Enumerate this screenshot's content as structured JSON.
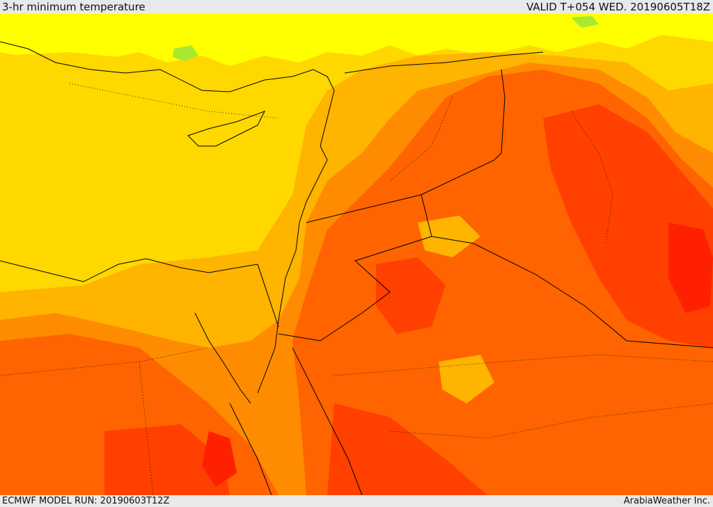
{
  "header": {
    "title": "3-hr minimum temperature",
    "valid": "VALID T+054 WED. 20190605T18Z"
  },
  "footer": {
    "model_run": "ECMWF MODEL RUN: 20190603T12Z",
    "credit": "ArabiaWeather Inc."
  },
  "colors": {
    "band_cool_green": "#a8e830",
    "band_yellow_light": "#ffff00",
    "band_yellow": "#ffd800",
    "band_gold": "#ffb400",
    "band_orange": "#ff8c00",
    "band_dark_orange": "#ff6400",
    "band_red_orange": "#ff4000",
    "band_red": "#ff2000",
    "borders": "#000000"
  }
}
